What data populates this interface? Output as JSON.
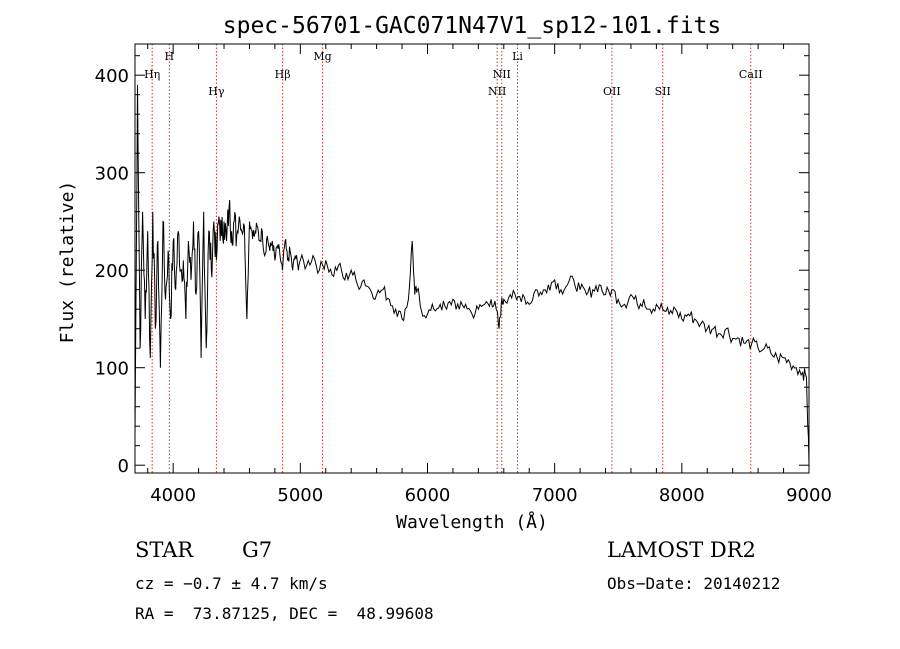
{
  "chart_data": {
    "type": "line",
    "title": "spec-56701-GAC071N47V1_sp12-101.fits",
    "xlabel": "Wavelength (Å)",
    "ylabel": "Flux (relative)",
    "xlim": [
      3700,
      9000
    ],
    "ylim": [
      -8,
      432
    ],
    "x_ticks": [
      4000,
      5000,
      6000,
      7000,
      8000,
      9000
    ],
    "y_ticks": [
      0,
      100,
      200,
      300,
      400
    ],
    "x_minor_step": 200,
    "y_minor_step": 20,
    "grid": false,
    "line_color": "#000000",
    "marker_color": "#c8302a",
    "reference_lines": [
      {
        "label": "Hη",
        "x": 3835,
        "tier": 1
      },
      {
        "label": "H",
        "x": 3970,
        "tier": 0
      },
      {
        "label": "Hγ",
        "x": 4340,
        "tier": 2
      },
      {
        "label": "Hβ",
        "x": 4861,
        "tier": 1
      },
      {
        "label": "Mg",
        "x": 5175,
        "tier": 0
      },
      {
        "label": "NII",
        "x": 6548,
        "tier": 2
      },
      {
        "label": "NII",
        "x": 6584,
        "tier": 1
      },
      {
        "label": "Li",
        "x": 6708,
        "tier": 0
      },
      {
        "label": "OII",
        "x": 7450,
        "tier": 2
      },
      {
        "label": "SII",
        "x": 7850,
        "tier": 2
      },
      {
        "label": "CaII",
        "x": 8542,
        "tier": 1
      }
    ],
    "series": [
      {
        "x": [
          3700,
          3720,
          3740,
          3760,
          3780,
          3800,
          3820,
          3840,
          3860,
          3880,
          3900,
          3920,
          3940,
          3960,
          3980,
          4000,
          4020,
          4040,
          4060,
          4080,
          4100,
          4120,
          4140,
          4160,
          4180,
          4200,
          4220,
          4240,
          4260,
          4280,
          4300,
          4320,
          4340,
          4360,
          4380,
          4400,
          4420,
          4440,
          4460,
          4480,
          4500,
          4520,
          4540,
          4560,
          4580,
          4600,
          4620,
          4640,
          4660,
          4680,
          4700,
          4720,
          4740,
          4760,
          4780,
          4800,
          4820,
          4840,
          4860,
          4880,
          4900,
          4920,
          4940,
          4960,
          4980,
          5000,
          5050,
          5100,
          5150,
          5200,
          5250,
          5300,
          5350,
          5400,
          5450,
          5500,
          5550,
          5600,
          5650,
          5700,
          5750,
          5800,
          5850,
          5880,
          5900,
          5920,
          5950,
          6000,
          6050,
          6100,
          6150,
          6200,
          6250,
          6300,
          6350,
          6400,
          6450,
          6500,
          6540,
          6563,
          6580,
          6600,
          6650,
          6700,
          6750,
          6800,
          6850,
          6900,
          6950,
          7000,
          7050,
          7100,
          7150,
          7200,
          7250,
          7300,
          7350,
          7400,
          7450,
          7500,
          7550,
          7600,
          7650,
          7700,
          7750,
          7800,
          7850,
          7900,
          7950,
          8000,
          8050,
          8100,
          8150,
          8200,
          8250,
          8300,
          8350,
          8400,
          8450,
          8500,
          8550,
          8600,
          8650,
          8700,
          8750,
          8800,
          8850,
          8900,
          8950,
          8980,
          9000
        ],
        "y": [
          30,
          390,
          120,
          260,
          150,
          240,
          110,
          260,
          140,
          230,
          100,
          250,
          170,
          220,
          150,
          230,
          180,
          240,
          200,
          210,
          150,
          230,
          190,
          250,
          175,
          240,
          110,
          260,
          120,
          240,
          200,
          250,
          210,
          255,
          235,
          250,
          230,
          265,
          240,
          250,
          235,
          255,
          240,
          245,
          150,
          250,
          240,
          235,
          245,
          230,
          240,
          215,
          235,
          220,
          230,
          210,
          225,
          215,
          200,
          230,
          210,
          220,
          200,
          215,
          205,
          210,
          205,
          215,
          200,
          210,
          195,
          205,
          190,
          200,
          185,
          190,
          180,
          175,
          180,
          170,
          160,
          150,
          170,
          230,
          175,
          180,
          160,
          155,
          160,
          165,
          160,
          170,
          160,
          165,
          155,
          160,
          165,
          170,
          160,
          140,
          165,
          170,
          175,
          170,
          175,
          165,
          180,
          175,
          185,
          190,
          180,
          185,
          190,
          180,
          175,
          180,
          185,
          175,
          180,
          170,
          165,
          175,
          165,
          170,
          160,
          165,
          160,
          155,
          160,
          150,
          155,
          150,
          145,
          140,
          140,
          135,
          140,
          130,
          130,
          125,
          125,
          120,
          120,
          115,
          110,
          110,
          105,
          100,
          95,
          90,
          0
        ]
      }
    ]
  },
  "footer": {
    "object_class": "STAR",
    "subclass": "G7",
    "survey": "LAMOST DR2",
    "cz": "cz = −0.7 ± 4.7 km/s",
    "obs_date": "Obs−Date: 20140212",
    "coords": "RA =  73.87125, DEC =  48.99608"
  }
}
